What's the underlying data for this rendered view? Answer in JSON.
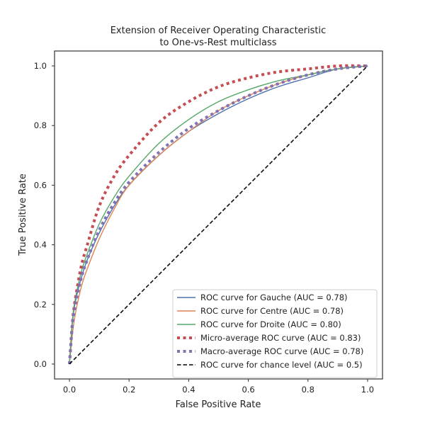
{
  "chart_data": {
    "type": "line",
    "title": [
      "Extension of Receiver Operating Characteristic",
      "to One-vs-Rest multiclass"
    ],
    "xlabel": "False Positive Rate",
    "ylabel": "True Positive Rate",
    "xlim": [
      -0.05,
      1.05
    ],
    "ylim": [
      -0.05,
      1.05
    ],
    "xticks": [
      "0.0",
      "0.2",
      "0.4",
      "0.6",
      "0.8",
      "1.0"
    ],
    "yticks": [
      "0.0",
      "0.2",
      "0.4",
      "0.6",
      "0.8",
      "1.0"
    ],
    "grid": false,
    "legend_position": "lower-right",
    "series": [
      {
        "name": "ROC curve for Gauche (AUC = 0.78)",
        "color": "#4c72b0",
        "style": "solid",
        "x": [
          0.0,
          0.01,
          0.02,
          0.04,
          0.06,
          0.1,
          0.15,
          0.2,
          0.3,
          0.4,
          0.5,
          0.6,
          0.7,
          0.8,
          0.9,
          1.0
        ],
        "y": [
          0.0,
          0.14,
          0.21,
          0.29,
          0.35,
          0.44,
          0.53,
          0.6,
          0.7,
          0.78,
          0.84,
          0.89,
          0.93,
          0.96,
          0.99,
          1.0
        ]
      },
      {
        "name": "ROC curve for Centre (AUC = 0.78)",
        "color": "#dd8452",
        "style": "solid",
        "x": [
          0.0,
          0.01,
          0.02,
          0.04,
          0.06,
          0.1,
          0.15,
          0.2,
          0.3,
          0.4,
          0.5,
          0.6,
          0.7,
          0.8,
          0.9,
          1.0
        ],
        "y": [
          0.0,
          0.1,
          0.17,
          0.26,
          0.32,
          0.42,
          0.52,
          0.6,
          0.7,
          0.78,
          0.85,
          0.9,
          0.94,
          0.97,
          0.99,
          1.0
        ]
      },
      {
        "name": "ROC curve for Droite (AUC = 0.80)",
        "color": "#55a868",
        "style": "solid",
        "x": [
          0.0,
          0.01,
          0.02,
          0.04,
          0.06,
          0.1,
          0.15,
          0.2,
          0.3,
          0.4,
          0.5,
          0.6,
          0.7,
          0.8,
          0.9,
          1.0
        ],
        "y": [
          0.0,
          0.15,
          0.22,
          0.31,
          0.37,
          0.47,
          0.56,
          0.63,
          0.74,
          0.82,
          0.88,
          0.92,
          0.95,
          0.97,
          0.99,
          1.0
        ]
      },
      {
        "name": "Micro-average ROC curve (AUC = 0.83)",
        "color": "#c44e52",
        "style": "dotted",
        "x": [
          0.0,
          0.01,
          0.02,
          0.04,
          0.06,
          0.1,
          0.15,
          0.2,
          0.3,
          0.4,
          0.5,
          0.6,
          0.7,
          0.8,
          0.9,
          1.0
        ],
        "y": [
          0.0,
          0.14,
          0.22,
          0.33,
          0.4,
          0.53,
          0.63,
          0.7,
          0.81,
          0.88,
          0.93,
          0.96,
          0.98,
          0.99,
          1.0,
          1.0
        ]
      },
      {
        "name": "Macro-average ROC curve (AUC = 0.78)",
        "color": "#8172b3",
        "style": "dotted",
        "x": [
          0.0,
          0.01,
          0.02,
          0.04,
          0.06,
          0.1,
          0.15,
          0.2,
          0.3,
          0.4,
          0.5,
          0.6,
          0.7,
          0.8,
          0.9,
          1.0
        ],
        "y": [
          0.0,
          0.13,
          0.2,
          0.29,
          0.35,
          0.45,
          0.54,
          0.61,
          0.71,
          0.79,
          0.85,
          0.9,
          0.94,
          0.97,
          0.99,
          1.0
        ]
      },
      {
        "name": "ROC curve for chance level (AUC = 0.5)",
        "color": "#000000",
        "style": "dashed",
        "x": [
          0.0,
          1.0
        ],
        "y": [
          0.0,
          1.0
        ]
      }
    ]
  }
}
